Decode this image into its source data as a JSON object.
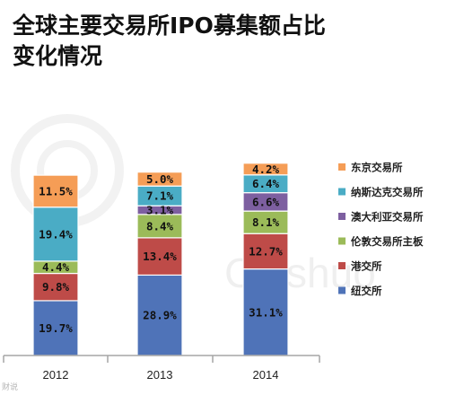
{
  "title": "全球主要交易所IPO募集额占比\n变化情况",
  "watermark": {
    "brand_text": "Caishuo",
    "source_credit": "财说"
  },
  "chart_data": {
    "type": "bar",
    "stacked": true,
    "categories": [
      "2012",
      "2013",
      "2014"
    ],
    "series": [
      {
        "name": "纽交所",
        "color": "#4f73b8",
        "values": [
          19.7,
          28.9,
          31.1
        ],
        "labels": [
          "19.7%",
          "28.9%",
          "31.1%"
        ]
      },
      {
        "name": "港交所",
        "color": "#be4b48",
        "values": [
          9.8,
          13.4,
          12.7
        ],
        "labels": [
          "9.8%",
          "13.4%",
          "12.7%"
        ]
      },
      {
        "name": "伦敦交易所主板",
        "color": "#9bbb59",
        "values": [
          4.4,
          8.4,
          8.1
        ],
        "labels": [
          "4.4%",
          "8.4%",
          "8.1%"
        ]
      },
      {
        "name": "澳大利亚交易所",
        "color": "#7d5fa0",
        "values": [
          0,
          3.1,
          6.6
        ],
        "labels": [
          "",
          "3.1%",
          "6.6%"
        ]
      },
      {
        "name": "纳斯达克交易所",
        "color": "#4aacc5",
        "values": [
          19.4,
          7.1,
          6.4
        ],
        "labels": [
          "19.4%",
          "7.1%",
          "6.4%"
        ]
      },
      {
        "name": "东京交易所",
        "color": "#f59d56",
        "values": [
          11.5,
          5.0,
          4.2
        ],
        "labels": [
          "11.5%",
          "5.0%",
          "4.2%"
        ]
      }
    ],
    "legend_position": "right",
    "grid": false
  }
}
